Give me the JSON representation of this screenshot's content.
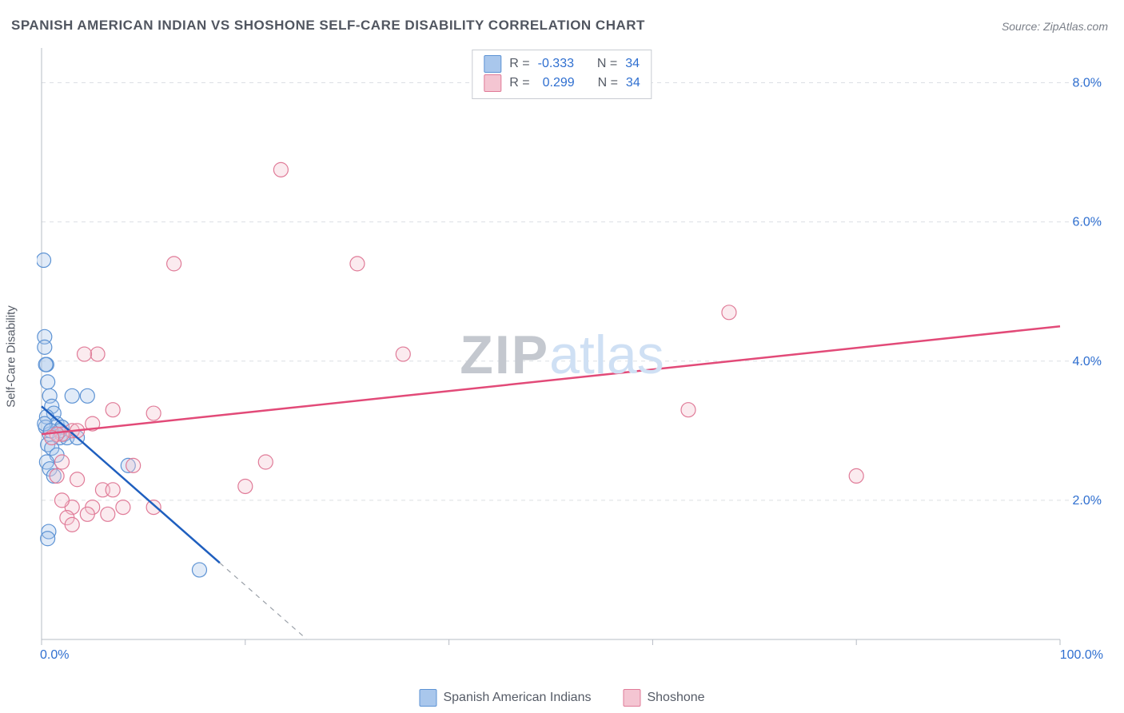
{
  "title": "SPANISH AMERICAN INDIAN VS SHOSHONE SELF-CARE DISABILITY CORRELATION CHART",
  "source_label": "Source: ZipAtlas.com",
  "ylabel": "Self-Care Disability",
  "watermark_zip": "ZIP",
  "watermark_atlas": "atlas",
  "chart": {
    "type": "scatter",
    "xlim": [
      0,
      100
    ],
    "ylim": [
      0,
      8.5
    ],
    "xtick_positions": [
      0,
      20,
      40,
      60,
      80,
      100
    ],
    "xtick_labels": [
      "0.0%",
      "",
      "",
      "",
      "",
      "100.0%"
    ],
    "ytick_positions": [
      2.0,
      4.0,
      6.0,
      8.0
    ],
    "ytick_labels": [
      "2.0%",
      "4.0%",
      "6.0%",
      "8.0%"
    ],
    "grid_color": "#dcdfe4",
    "axis_color": "#b7bcc4",
    "tick_label_color": "#2f6fd0",
    "tick_label_fontsize": 16,
    "background_color": "#ffffff",
    "marker_radius": 9,
    "marker_fill_opacity": 0.35,
    "marker_stroke_width": 1.2
  },
  "series": [
    {
      "name": "Spanish American Indians",
      "color_fill": "#a9c7ec",
      "color_stroke": "#5d93d4",
      "trend_color": "#1f5fbf",
      "trend_dash_color": "#9aa0a8",
      "R_label": "R =",
      "R": "-0.333",
      "N_label": "N =",
      "N": "34",
      "trend": {
        "x1": 0,
        "y1": 3.35,
        "x2": 17.5,
        "y2": 1.1,
        "dash_x2": 26
      },
      "points": [
        [
          0.2,
          5.45
        ],
        [
          0.3,
          4.35
        ],
        [
          0.3,
          4.2
        ],
        [
          0.5,
          3.95
        ],
        [
          0.4,
          3.95
        ],
        [
          0.6,
          3.7
        ],
        [
          0.8,
          3.5
        ],
        [
          1.0,
          3.35
        ],
        [
          1.2,
          3.25
        ],
        [
          0.5,
          3.2
        ],
        [
          1.5,
          3.1
        ],
        [
          2.0,
          3.05
        ],
        [
          0.8,
          2.95
        ],
        [
          1.8,
          2.9
        ],
        [
          2.2,
          2.95
        ],
        [
          0.6,
          2.8
        ],
        [
          1.0,
          2.75
        ],
        [
          1.5,
          2.65
        ],
        [
          0.5,
          2.55
        ],
        [
          2.5,
          2.9
        ],
        [
          3.5,
          2.9
        ],
        [
          0.8,
          2.45
        ],
        [
          1.2,
          2.35
        ],
        [
          2.0,
          3.05
        ],
        [
          1.8,
          3.0
        ],
        [
          0.4,
          3.05
        ],
        [
          0.3,
          3.1
        ],
        [
          0.7,
          1.55
        ],
        [
          8.5,
          2.5
        ],
        [
          0.6,
          1.45
        ],
        [
          15.5,
          1.0
        ],
        [
          3.0,
          3.5
        ],
        [
          4.5,
          3.5
        ],
        [
          0.9,
          3.0
        ]
      ]
    },
    {
      "name": "Shoshone",
      "color_fill": "#f4c5d2",
      "color_stroke": "#e07b98",
      "trend_color": "#e24a78",
      "R_label": "R =",
      "R": "0.299",
      "N_label": "N =",
      "N": "34",
      "trend": {
        "x1": 0,
        "y1": 2.95,
        "x2": 100,
        "y2": 4.5
      },
      "points": [
        [
          23.5,
          6.75
        ],
        [
          13.0,
          5.4
        ],
        [
          31.0,
          5.4
        ],
        [
          67.5,
          4.7
        ],
        [
          35.5,
          4.1
        ],
        [
          5.5,
          4.1
        ],
        [
          4.2,
          4.1
        ],
        [
          63.5,
          3.3
        ],
        [
          80.0,
          2.35
        ],
        [
          7.0,
          3.3
        ],
        [
          11.0,
          3.25
        ],
        [
          5.0,
          3.1
        ],
        [
          3.0,
          3.0
        ],
        [
          3.5,
          3.0
        ],
        [
          2.0,
          2.95
        ],
        [
          1.5,
          2.95
        ],
        [
          1.0,
          2.9
        ],
        [
          22.0,
          2.55
        ],
        [
          9.0,
          2.5
        ],
        [
          20.0,
          2.2
        ],
        [
          2.0,
          2.55
        ],
        [
          3.5,
          2.3
        ],
        [
          6.0,
          2.15
        ],
        [
          7.0,
          2.15
        ],
        [
          3.0,
          1.9
        ],
        [
          5.0,
          1.9
        ],
        [
          8.0,
          1.9
        ],
        [
          11.0,
          1.9
        ],
        [
          4.5,
          1.8
        ],
        [
          6.5,
          1.8
        ],
        [
          2.5,
          1.75
        ],
        [
          3.0,
          1.65
        ],
        [
          1.5,
          2.35
        ],
        [
          2.0,
          2.0
        ]
      ]
    }
  ]
}
